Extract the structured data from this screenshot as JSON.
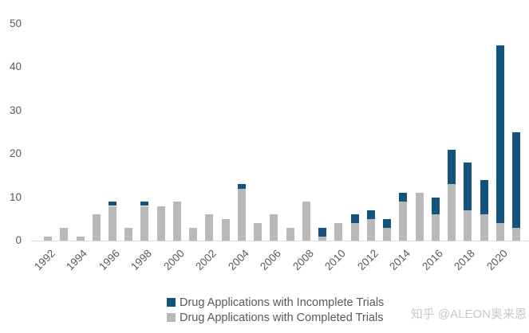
{
  "chart_data": {
    "type": "bar",
    "stacked": true,
    "title": "",
    "xlabel": "",
    "ylabel": "",
    "x": [
      1992,
      1993,
      1994,
      1995,
      1996,
      1997,
      1998,
      1999,
      2000,
      2001,
      2002,
      2003,
      2004,
      2005,
      2006,
      2007,
      2008,
      2009,
      2010,
      2011,
      2012,
      2013,
      2014,
      2015,
      2016,
      2017,
      2018,
      2019,
      2020,
      2021
    ],
    "series": [
      {
        "name": "Drug Applications with Completed Trials",
        "color": "#b9b9b9",
        "values": [
          1,
          3,
          1,
          6,
          8,
          3,
          8,
          8,
          9,
          3,
          6,
          5,
          12,
          4,
          6,
          3,
          9,
          1,
          4,
          4,
          5,
          3,
          9,
          11,
          6,
          13,
          7,
          6,
          4,
          3
        ]
      },
      {
        "name": "Drug Applications with Incomplete Trials",
        "color": "#14537e",
        "values": [
          0,
          0,
          0,
          0,
          1,
          0,
          1,
          0,
          0,
          0,
          0,
          0,
          1,
          0,
          0,
          0,
          0,
          2,
          0,
          2,
          2,
          2,
          2,
          0,
          4,
          8,
          11,
          8,
          41,
          22
        ]
      }
    ],
    "ylim": [
      0,
      50
    ],
    "yticks": [
      0,
      10,
      20,
      30,
      40,
      50
    ],
    "xtick_labels": [
      "1992",
      "1994",
      "1996",
      "1998",
      "2000",
      "2002",
      "2004",
      "2006",
      "2008",
      "2010",
      "2012",
      "2014",
      "2016",
      "2018",
      "2020"
    ],
    "grid": false,
    "legend_position": "bottom"
  },
  "legend": {
    "items": [
      {
        "key": "incomplete",
        "label": "Drug Applications with Incomplete Trials",
        "color": "#14537e"
      },
      {
        "key": "completed",
        "label": "Drug Applications with Completed Trials",
        "color": "#b9b9b9"
      }
    ]
  },
  "watermark": {
    "text": "知乎 @ALEON奥来恩"
  },
  "colors": {
    "incomplete_bar": "#14537e",
    "completed_bar": "#b9b9b9",
    "axis_text": "#595959",
    "axis_line": "#d9d9d9",
    "watermark_text": "#c6c9cd",
    "background": "#ffffff"
  }
}
